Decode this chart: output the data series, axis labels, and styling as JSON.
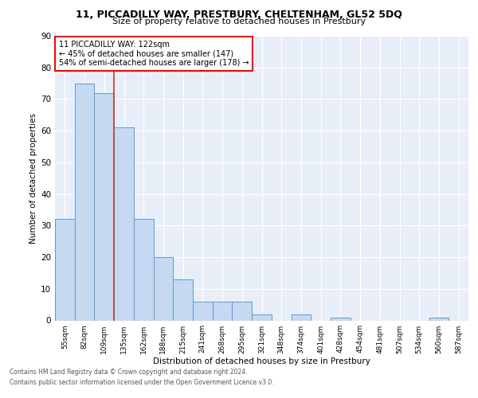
{
  "title1": "11, PICCADILLY WAY, PRESTBURY, CHELTENHAM, GL52 5DQ",
  "title2": "Size of property relative to detached houses in Prestbury",
  "xlabel": "Distribution of detached houses by size in Prestbury",
  "ylabel": "Number of detached properties",
  "bin_labels": [
    "55sqm",
    "82sqm",
    "109sqm",
    "135sqm",
    "162sqm",
    "188sqm",
    "215sqm",
    "241sqm",
    "268sqm",
    "295sqm",
    "321sqm",
    "348sqm",
    "374sqm",
    "401sqm",
    "428sqm",
    "454sqm",
    "481sqm",
    "507sqm",
    "534sqm",
    "560sqm",
    "587sqm"
  ],
  "bar_values": [
    32,
    75,
    72,
    61,
    32,
    20,
    13,
    6,
    6,
    6,
    2,
    0,
    2,
    0,
    1,
    0,
    0,
    0,
    0,
    1,
    0
  ],
  "bar_color": "#c5d9f0",
  "bar_edge_color": "#5b9bd5",
  "vline_x_index": 2.5,
  "annotation_text": "11 PICCADILLY WAY: 122sqm\n← 45% of detached houses are smaller (147)\n54% of semi-detached houses are larger (178) →",
  "annotation_box_color": "white",
  "annotation_box_edge_color": "red",
  "vline_color": "#c0392b",
  "footer1": "Contains HM Land Registry data © Crown copyright and database right 2024.",
  "footer2": "Contains public sector information licensed under the Open Government Licence v3.0.",
  "background_color": "#e8eef8",
  "ylim": [
    0,
    90
  ],
  "yticks": [
    0,
    10,
    20,
    30,
    40,
    50,
    60,
    70,
    80,
    90
  ],
  "title1_fontsize": 9.0,
  "title2_fontsize": 8.0,
  "ylabel_fontsize": 7.5,
  "xlabel_fontsize": 7.5,
  "tick_fontsize": 6.5,
  "annot_fontsize": 7.0,
  "footer_fontsize": 5.5
}
